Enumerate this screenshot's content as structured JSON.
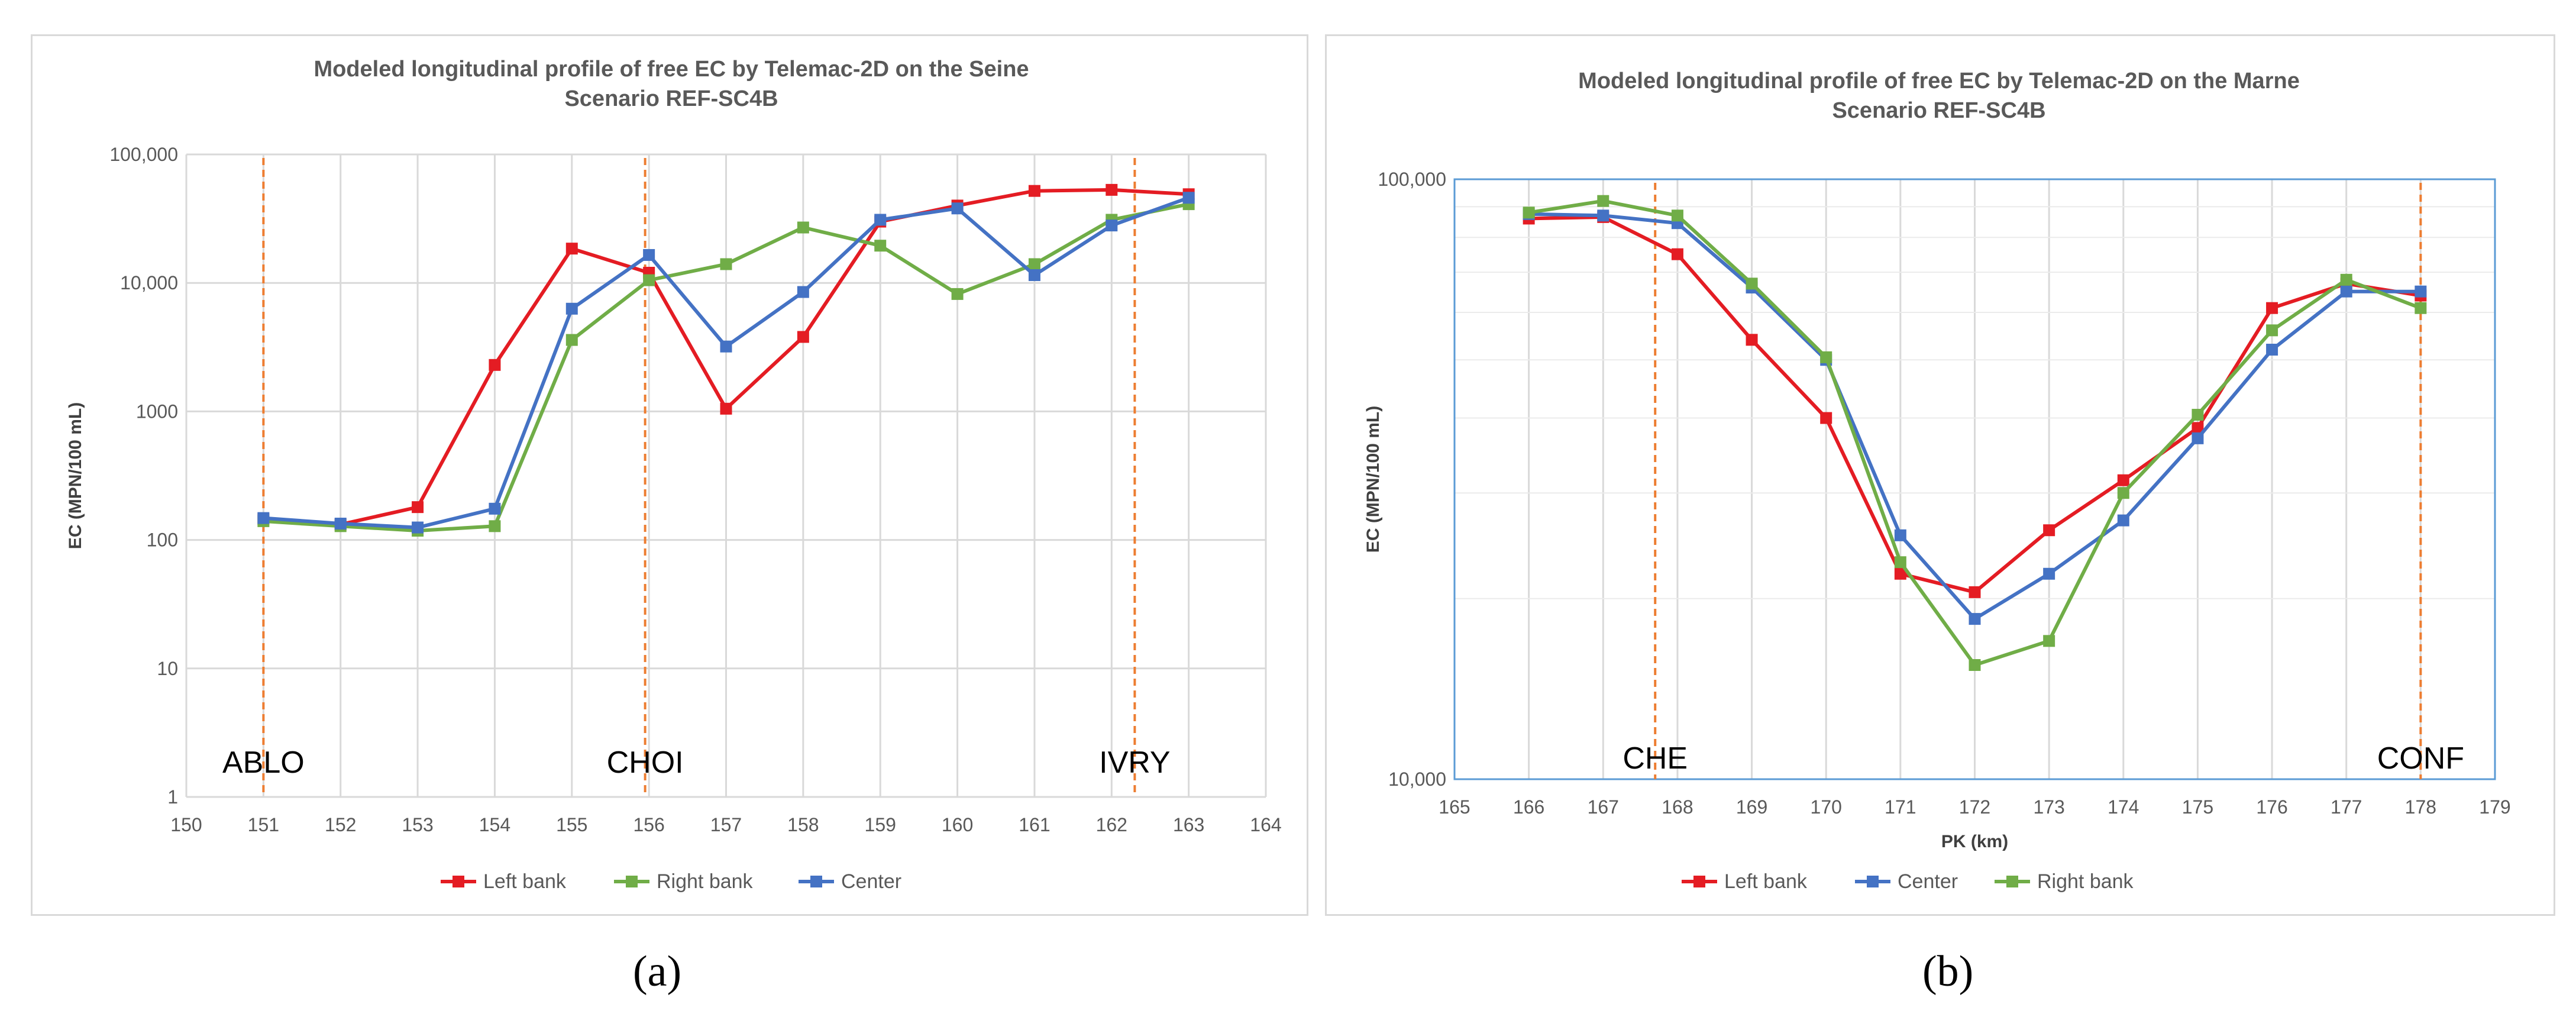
{
  "colors": {
    "left_bank": "#e41c23",
    "right_bank": "#70ad47",
    "center": "#4472c4",
    "site_line": "#ed7d31",
    "grid": "#d9d9d9",
    "frame": "#5b9bd5"
  },
  "captions": {
    "a": "(a)",
    "b": "(b)"
  },
  "chart_data": [
    {
      "type": "line",
      "title": [
        "Modeled longitudinal profile of free EC  by Telemac-2D on the Seine",
        "Scenario REF-SC4B"
      ],
      "xlabel": "",
      "ylabel": "EC (MPN/100 mL)",
      "y_scale": "log",
      "xlim": [
        150,
        164
      ],
      "ylim": [
        1,
        100000
      ],
      "x_ticks": [
        150,
        151,
        152,
        153,
        154,
        155,
        156,
        157,
        158,
        159,
        160,
        161,
        162,
        163,
        164
      ],
      "y_ticks": [
        {
          "value": 1,
          "label": "1"
        },
        {
          "value": 10,
          "label": "10"
        },
        {
          "value": 100,
          "label": "100"
        },
        {
          "value": 1000,
          "label": "1000"
        },
        {
          "value": 10000,
          "label": "10,000"
        },
        {
          "value": 100000,
          "label": "100,000"
        }
      ],
      "legend_position": "bottom",
      "site_lines": [
        {
          "label": "ABLO",
          "x": 151
        },
        {
          "label": "CHOI",
          "x": 155.95
        },
        {
          "label": "IVRY",
          "x": 162.3
        }
      ],
      "x": [
        151,
        152,
        153,
        154,
        155,
        156,
        157,
        158,
        159,
        160,
        161,
        162,
        163
      ],
      "series": [
        {
          "name": "Left bank",
          "color_key": "left_bank",
          "values": [
            145,
            132,
            180,
            2300,
            18500,
            12000,
            1050,
            3800,
            30000,
            40000,
            52000,
            53000,
            49000
          ]
        },
        {
          "name": "Right bank",
          "color_key": "right_bank",
          "values": [
            140,
            128,
            118,
            128,
            3600,
            10500,
            14000,
            27000,
            19500,
            8200,
            14000,
            31000,
            41000
          ]
        },
        {
          "name": "Center",
          "color_key": "center",
          "values": [
            148,
            134,
            125,
            175,
            6300,
            16500,
            3200,
            8500,
            31000,
            38000,
            11500,
            28000,
            46000
          ]
        }
      ]
    },
    {
      "type": "line",
      "title": [
        "Modeled longitudinal profile of free EC by Telemac-2D on the Marne",
        "Scenario REF-SC4B"
      ],
      "xlabel": "PK (km)",
      "ylabel": "EC (MPN/100 mL)",
      "y_scale": "log",
      "xlim": [
        165,
        179
      ],
      "ylim": [
        10000,
        100000
      ],
      "x_ticks": [
        165,
        166,
        167,
        168,
        169,
        170,
        171,
        172,
        173,
        174,
        175,
        176,
        177,
        178,
        179
      ],
      "y_ticks": [
        {
          "value": 10000,
          "label": "10,000"
        },
        {
          "value": 100000,
          "label": "100,000"
        }
      ],
      "y_minor_gridlines": [
        20000,
        30000,
        40000,
        50000,
        60000,
        70000,
        80000,
        90000
      ],
      "legend_position": "bottom",
      "site_lines": [
        {
          "label": "CHE",
          "x": 167.7
        },
        {
          "label": "CONF",
          "x": 178
        }
      ],
      "x": [
        166,
        167,
        168,
        169,
        170,
        171,
        172,
        173,
        174,
        175,
        176,
        177,
        178
      ],
      "series": [
        {
          "name": "Left bank",
          "color_key": "left_bank",
          "values": [
            86000,
            86500,
            75000,
            54000,
            40000,
            22000,
            20500,
            26000,
            31500,
            38500,
            61000,
            67000,
            64000
          ]
        },
        {
          "name": "Center",
          "color_key": "center",
          "values": [
            87500,
            87000,
            84500,
            66000,
            50000,
            25500,
            18500,
            22000,
            27000,
            37000,
            52000,
            65000,
            65000
          ]
        },
        {
          "name": "Right bank",
          "color_key": "right_bank",
          "values": [
            88000,
            92000,
            87000,
            67000,
            50500,
            23000,
            15500,
            17000,
            30000,
            40500,
            56000,
            68000,
            61000
          ]
        }
      ]
    }
  ]
}
